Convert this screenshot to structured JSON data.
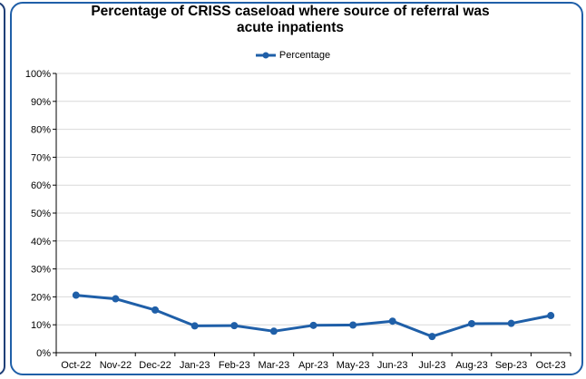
{
  "chart_data": {
    "type": "line",
    "title": "Percentage of CRISS caseload where source of referral was acute inpatients",
    "title_lines": [
      "Percentage of CRISS caseload where source of referral was",
      "acute inpatients"
    ],
    "categories": [
      "Oct-22",
      "Nov-22",
      "Dec-22",
      "Jan-23",
      "Feb-23",
      "Mar-23",
      "Apr-23",
      "May-23",
      "Jun-23",
      "Jul-23",
      "Aug-23",
      "Sep-23",
      "Oct-23"
    ],
    "series": [
      {
        "name": "Percentage",
        "color": "#1f5fa8",
        "values": [
          20.6,
          19.3,
          15.3,
          9.6,
          9.7,
          7.7,
          9.8,
          9.9,
          11.3,
          5.8,
          10.4,
          10.5,
          13.3
        ]
      }
    ],
    "y_ticks": [
      "0%",
      "10%",
      "20%",
      "30%",
      "40%",
      "50%",
      "60%",
      "70%",
      "80%",
      "90%",
      "100%"
    ],
    "ylim": [
      0,
      100
    ],
    "y_unit": "%",
    "grid": true,
    "legend_position": "top"
  }
}
